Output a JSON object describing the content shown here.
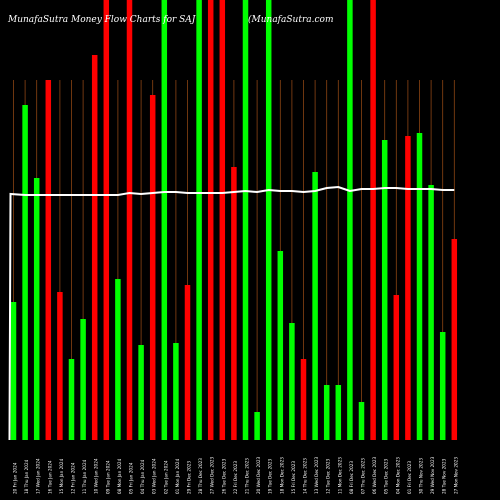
{
  "header": {
    "title": "MunafaSutra  Money Flow  Charts for SAJ",
    "site": "(MunafaSutra.com"
  },
  "colors": {
    "background": "#000000",
    "grid": "#8B4513",
    "up": "#00FF00",
    "down": "#FF0000",
    "flow_line": "#FFFFFF",
    "tick_text": "#FFFFFF"
  },
  "chart_data": {
    "type": "bar",
    "title": "MunafaSutra  Money Flow  Charts for SAJ",
    "categories": [
      "20 Fri Jan 2024",
      "18 Thu Jan 2024",
      "17 Wed Jan 2024",
      "16 Tue Jan 2024",
      "15 Mon Jan 2024",
      "12 Fri Jan 2024",
      "11 Thu Jan 2024",
      "10 Wed Jan 2024",
      "09 Tue Jan 2024",
      "08 Mon Jan 2024",
      "05 Fri Jan 2024",
      "04 Thu Jan 2024",
      "03 Wed Jan 2024",
      "02 Tue Jan 2024",
      "01 Mon Jan 2024",
      "29 Fri Dec 2023",
      "28 Thu Dec 2023",
      "27 Wed Dec 2023",
      "26 Tue Dec 2023",
      "22 Fri Dec 2023",
      "21 Thu Dec 2023",
      "20 Wed Dec 2023",
      "19 Tue Dec 2023",
      "18 Mon Dec 2023",
      "15 Fri Dec 2023",
      "14 Thu Dec 2023",
      "13 Wed Dec 2023",
      "12 Tue Dec 2023",
      "11 Mon Dec 2023",
      "08 Fri Dec 2023",
      "07 Thu Dec 2023",
      "06 Wed Dec 2023",
      "05 Tue Dec 2023",
      "04 Mon Dec 2023",
      "01 Fri Dec 2023",
      "30 Thu Nov 2023",
      "29 Wed Nov 2023",
      "28 Tue Nov 2023",
      "27 Mon Nov 2023"
    ],
    "values": [
      138,
      335,
      262,
      360,
      148,
      81,
      121,
      385,
      440,
      161,
      440,
      95,
      345,
      440,
      97,
      155,
      440,
      440,
      440,
      273,
      440,
      28,
      440,
      189,
      117,
      81,
      268,
      55,
      55,
      440,
      38,
      440,
      300,
      145,
      304,
      307,
      255,
      108,
      201
    ],
    "directions": [
      "up",
      "up",
      "up",
      "down",
      "down",
      "up",
      "up",
      "down",
      "down",
      "up",
      "down",
      "up",
      "down",
      "up",
      "up",
      "down",
      "up",
      "down",
      "down",
      "down",
      "up",
      "up",
      "up",
      "up",
      "up",
      "down",
      "up",
      "up",
      "up",
      "up",
      "up",
      "down",
      "up",
      "down",
      "down",
      "up",
      "up",
      "up",
      "down"
    ],
    "flow_line": [
      246,
      245,
      245,
      245,
      245,
      245,
      245,
      245,
      245,
      245,
      247,
      246,
      247,
      248,
      248,
      247,
      247,
      247,
      247,
      248,
      249,
      248,
      250,
      249,
      249,
      248,
      249,
      252,
      253,
      249,
      251,
      251,
      252,
      252,
      251,
      251,
      251,
      250,
      250
    ],
    "flow_line_start": 0,
    "ylim": [
      0,
      440
    ],
    "grid": true,
    "xlabel": "",
    "ylabel": ""
  }
}
